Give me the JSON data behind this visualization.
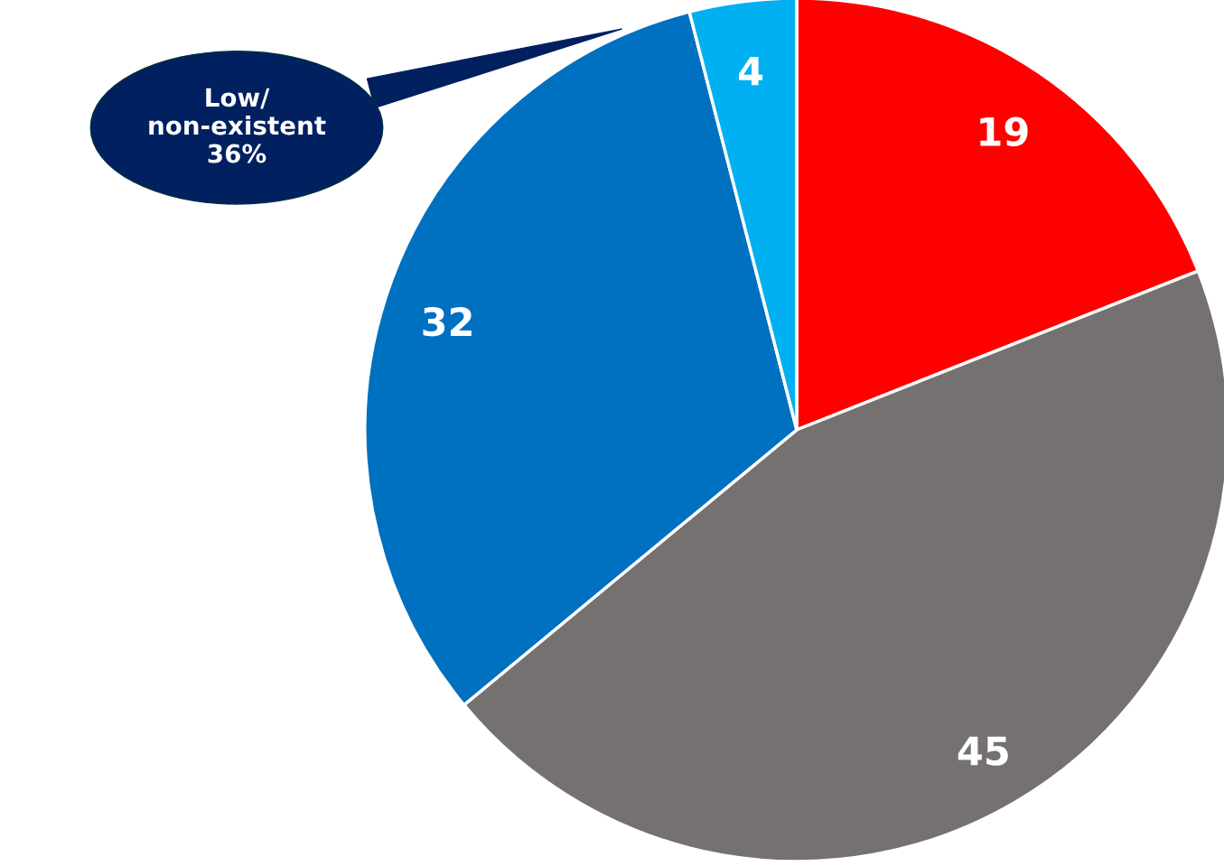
{
  "chart_data": {
    "type": "pie",
    "categories": [
      null,
      null,
      null,
      null
    ],
    "values": [
      19,
      45,
      32,
      4
    ],
    "colors": [
      "#ff0000",
      "#767171",
      "#0070c0",
      "#00b0f0"
    ],
    "data_labels": true,
    "annotations": [
      "Low/\nnon-existent\n36%"
    ]
  }
}
